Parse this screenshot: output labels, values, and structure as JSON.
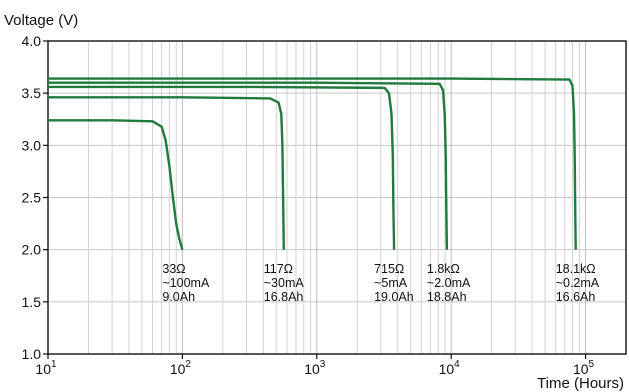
{
  "chart_data": {
    "type": "line",
    "title": "",
    "ylabel": "Voltage (V)",
    "xlabel": "Time (Hours)",
    "xscale": "log",
    "xlim": [
      10,
      200000
    ],
    "ylim": [
      1.0,
      4.0
    ],
    "grid": true,
    "y_ticks": [
      "1.0",
      "1.5",
      "2.0",
      "2.5",
      "3.0",
      "3.5",
      "4.0"
    ],
    "x_ticks": [
      {
        "base": "10",
        "exp": "1"
      },
      {
        "base": "10",
        "exp": "2"
      },
      {
        "base": "10",
        "exp": "3"
      },
      {
        "base": "10",
        "exp": "4"
      },
      {
        "base": "10",
        "exp": "5"
      }
    ],
    "line_color": "#1f7a3c",
    "series": [
      {
        "x": [
          10,
          30,
          60,
          70,
          75,
          80,
          85,
          90,
          95,
          100
        ],
        "y": [
          3.24,
          3.24,
          3.23,
          3.18,
          3.05,
          2.8,
          2.5,
          2.25,
          2.1,
          2.0
        ],
        "annotation": [
          "33Ω",
          "~100mA",
          "9.0Ah"
        ]
      },
      {
        "x": [
          10,
          100,
          450,
          520,
          545,
          555,
          562,
          568
        ],
        "y": [
          3.46,
          3.46,
          3.45,
          3.41,
          3.3,
          3.0,
          2.5,
          2.0
        ],
        "annotation": [
          "117Ω",
          "~30mA",
          "16.8Ah"
        ]
      },
      {
        "x": [
          10,
          300,
          3200,
          3450,
          3600,
          3680,
          3720,
          3760
        ],
        "y": [
          3.56,
          3.56,
          3.55,
          3.5,
          3.3,
          2.9,
          2.4,
          2.0
        ],
        "annotation": [
          "715Ω",
          "~5mA",
          "19.0Ah"
        ]
      },
      {
        "x": [
          10,
          1000,
          8200,
          8700,
          8950,
          9100,
          9200,
          9300
        ],
        "y": [
          3.6,
          3.6,
          3.59,
          3.53,
          3.3,
          2.9,
          2.4,
          2.0
        ],
        "annotation": [
          "1.8kΩ",
          "~2.0mA",
          "18.8Ah"
        ]
      },
      {
        "x": [
          10,
          10000,
          76000,
          80000,
          82000,
          83000,
          83700,
          84500
        ],
        "y": [
          3.64,
          3.64,
          3.63,
          3.57,
          3.3,
          2.9,
          2.4,
          2.0
        ],
        "annotation": [
          "18.1kΩ",
          "~0.2mA",
          "16.6Ah"
        ]
      }
    ]
  }
}
